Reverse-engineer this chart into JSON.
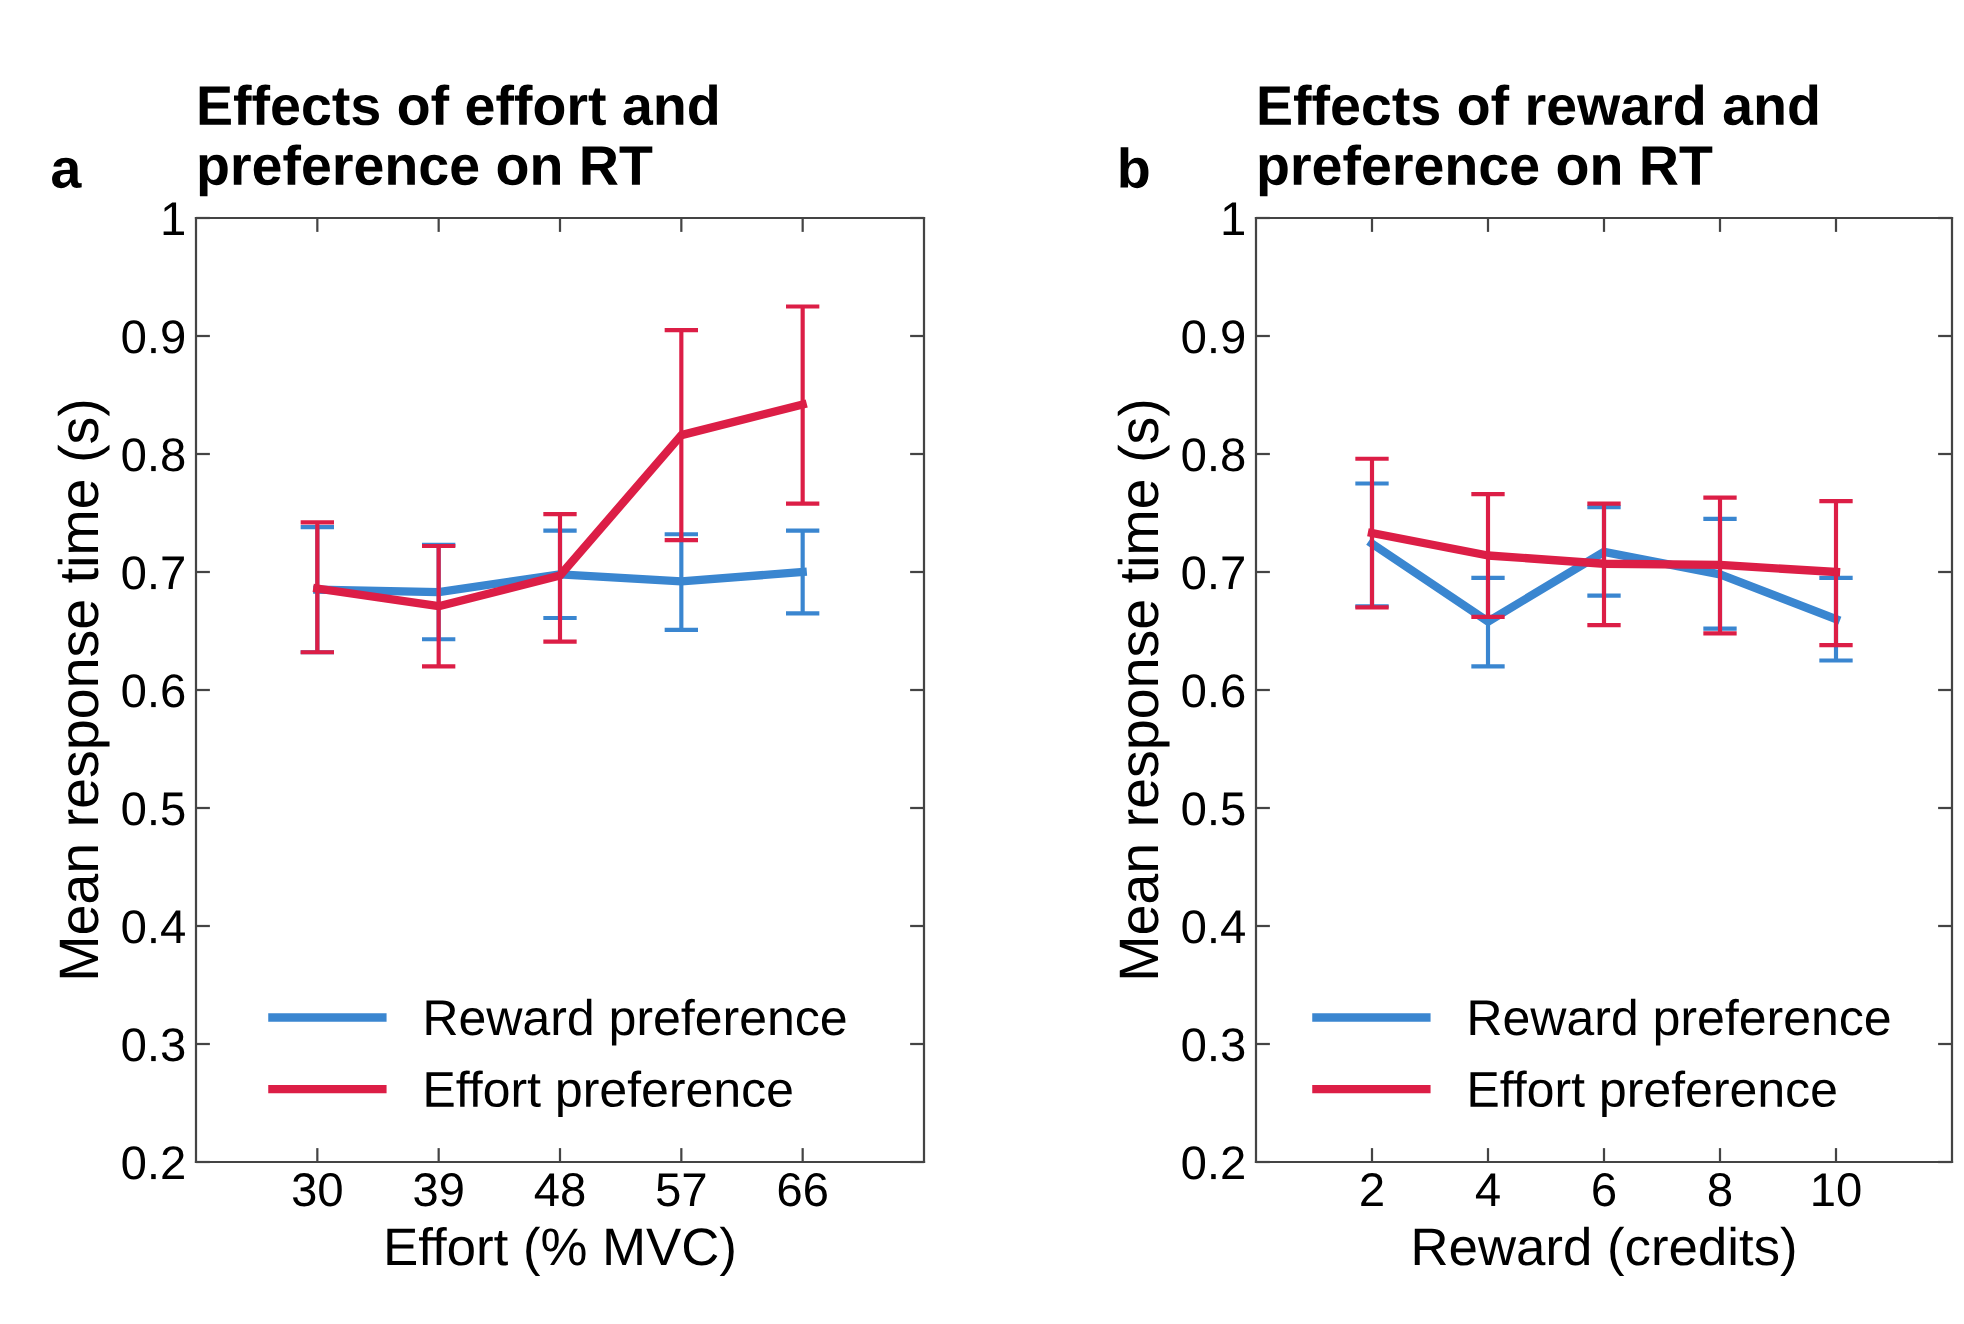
{
  "chart_data": [
    {
      "type": "line",
      "title": "Effects of effort and\npreference on RT",
      "annotations": [
        "a"
      ],
      "xlabel": "Effort (% MVC)",
      "ylabel": "Mean response time (s)",
      "x": [
        30,
        39,
        48,
        57,
        66
      ],
      "xlim": [
        21,
        75
      ],
      "xticks": [
        30,
        39,
        48,
        57,
        66
      ],
      "ylim": [
        0.2,
        1
      ],
      "yticks": [
        0.2,
        0.3,
        0.4,
        0.5,
        0.6,
        0.7,
        0.8,
        0.9,
        1
      ],
      "grid": false,
      "legend": "bottom",
      "marker": "none",
      "line_style": "solid",
      "series": [
        {
          "name": "Reward preference",
          "color": "#3a86d0",
          "values": [
            0.685,
            0.683,
            0.698,
            0.692,
            0.7
          ],
          "errors": [
            [
              0.632,
              0.738
            ],
            [
              0.643,
              0.723
            ],
            [
              0.661,
              0.735
            ],
            [
              0.651,
              0.732
            ],
            [
              0.665,
              0.735
            ]
          ]
        },
        {
          "name": "Effort preference",
          "color": "#dc1e46",
          "values": [
            0.686,
            0.671,
            0.697,
            0.816,
            0.842
          ],
          "errors": [
            [
              0.632,
              0.742
            ],
            [
              0.62,
              0.722
            ],
            [
              0.641,
              0.749
            ],
            [
              0.727,
              0.905
            ],
            [
              0.758,
              0.925
            ]
          ]
        }
      ]
    },
    {
      "type": "line",
      "title": "Effects of reward and\npreference on RT",
      "annotations": [
        "b"
      ],
      "xlabel": "Reward (credits)",
      "ylabel": "Mean response time (s)",
      "x": [
        2,
        4,
        6,
        8,
        10
      ],
      "xlim": [
        0,
        12
      ],
      "xticks": [
        2,
        4,
        6,
        8,
        10
      ],
      "ylim": [
        0.2,
        1
      ],
      "yticks": [
        0.2,
        0.3,
        0.4,
        0.5,
        0.6,
        0.7,
        0.8,
        0.9,
        1
      ],
      "grid": false,
      "legend": "bottom",
      "marker": "none",
      "line_style": "solid",
      "series": [
        {
          "name": "Reward preference",
          "color": "#3a86d0",
          "values": [
            0.724,
            0.658,
            0.717,
            0.698,
            0.66
          ],
          "errors": [
            [
              0.671,
              0.775
            ],
            [
              0.62,
              0.695
            ],
            [
              0.68,
              0.755
            ],
            [
              0.652,
              0.745
            ],
            [
              0.625,
              0.695
            ]
          ]
        },
        {
          "name": "Effort preference",
          "color": "#dc1e46",
          "values": [
            0.733,
            0.714,
            0.707,
            0.706,
            0.7
          ],
          "errors": [
            [
              0.67,
              0.796
            ],
            [
              0.662,
              0.766
            ],
            [
              0.655,
              0.758
            ],
            [
              0.648,
              0.763
            ],
            [
              0.638,
              0.76
            ]
          ]
        }
      ]
    }
  ]
}
